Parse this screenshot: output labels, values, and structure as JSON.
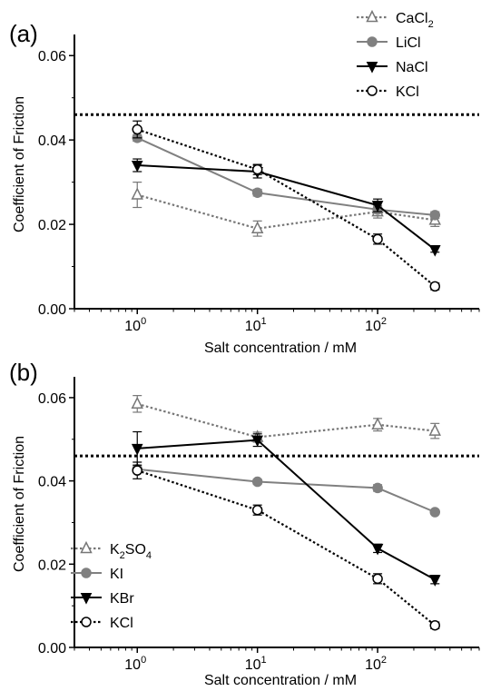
{
  "chart_data": [
    {
      "panel_label": "(a)",
      "type": "line",
      "x_scale": "log",
      "xlabel": "Salt concentration / mM",
      "ylabel": "Coefficient of Friction",
      "xlim": [
        0.3,
        700
      ],
      "ylim": [
        0,
        0.065
      ],
      "x_tick_labels": [
        {
          "base": "10",
          "exp": "0",
          "value": 1
        },
        {
          "base": "10",
          "exp": "1",
          "value": 10
        },
        {
          "base": "10",
          "exp": "2",
          "value": 100
        }
      ],
      "y_ticks": [
        0.0,
        0.02,
        0.04,
        0.06
      ],
      "y_tick_labels": [
        "0.00",
        "0.02",
        "0.04",
        "0.06"
      ],
      "reference_line": {
        "y": 0.046,
        "style": "dotted"
      },
      "legend": {
        "placement": "top-right"
      },
      "series": [
        {
          "name": "CaCl",
          "name_sub": "2",
          "marker": "triangle-open",
          "line": "dotted",
          "color": "#777777",
          "x": [
            1,
            10,
            100,
            300
          ],
          "y": [
            0.027,
            0.019,
            0.023,
            0.021
          ],
          "err": [
            0.003,
            0.0018,
            0.0015,
            0.0015
          ]
        },
        {
          "name": "LiCl",
          "marker": "circle-filled",
          "line": "solid",
          "color": "#808080",
          "x": [
            1,
            10,
            100,
            300
          ],
          "y": [
            0.0405,
            0.0275,
            0.0235,
            0.0222
          ],
          "err": [
            0.0008,
            0.0008,
            0.0008,
            0.0008
          ]
        },
        {
          "name": "NaCl",
          "marker": "triangle-down-filled",
          "line": "solid",
          "color": "#000000",
          "x": [
            1,
            10,
            100,
            300
          ],
          "y": [
            0.034,
            0.0325,
            0.0245,
            0.014
          ],
          "err": [
            0.0015,
            0.0015,
            0.0015,
            0.0006
          ]
        },
        {
          "name": "KCl",
          "marker": "circle-open",
          "line": "dotted",
          "color": "#000000",
          "x": [
            1,
            10,
            100,
            300
          ],
          "y": [
            0.0425,
            0.033,
            0.0165,
            0.0053
          ],
          "err": [
            0.002,
            0.0012,
            0.0012,
            0.0008
          ]
        }
      ]
    },
    {
      "panel_label": "(b)",
      "type": "line",
      "x_scale": "log",
      "xlabel": "Salt concentration / mM",
      "ylabel": "Coefficient of Friction",
      "xlim": [
        0.3,
        700
      ],
      "ylim": [
        0,
        0.065
      ],
      "x_tick_labels": [
        {
          "base": "10",
          "exp": "0",
          "value": 1
        },
        {
          "base": "10",
          "exp": "1",
          "value": 10
        },
        {
          "base": "10",
          "exp": "2",
          "value": 100
        }
      ],
      "y_ticks": [
        0.0,
        0.02,
        0.04,
        0.06
      ],
      "y_tick_labels": [
        "0.00",
        "0.02",
        "0.04",
        "0.06"
      ],
      "reference_line": {
        "y": 0.046,
        "style": "dotted"
      },
      "legend": {
        "placement": "bottom-left"
      },
      "series": [
        {
          "name": "K",
          "name_sub": "2",
          "name_suffix": "SO",
          "name_sub2": "4",
          "marker": "triangle-open",
          "line": "dotted",
          "color": "#777777",
          "x": [
            1,
            10,
            100,
            300
          ],
          "y": [
            0.0585,
            0.0505,
            0.0535,
            0.052
          ],
          "err": [
            0.002,
            0.0012,
            0.0015,
            0.0018
          ]
        },
        {
          "name": "KI",
          "marker": "circle-filled",
          "line": "solid",
          "color": "#808080",
          "x": [
            1,
            10,
            100,
            300
          ],
          "y": [
            0.0428,
            0.0398,
            0.0383,
            0.0325
          ],
          "err": [
            0.0008,
            0.0006,
            0.0008,
            0.0005
          ]
        },
        {
          "name": "KBr",
          "marker": "triangle-down-filled",
          "line": "solid",
          "color": "#000000",
          "x": [
            1,
            10,
            100,
            300
          ],
          "y": [
            0.0478,
            0.0498,
            0.0238,
            0.0163
          ],
          "err": [
            0.004,
            0.0015,
            0.001,
            0.001
          ]
        },
        {
          "name": "KCl",
          "marker": "circle-open",
          "line": "dotted",
          "color": "#000000",
          "x": [
            1,
            10,
            100,
            300
          ],
          "y": [
            0.0425,
            0.033,
            0.0165,
            0.0053
          ],
          "err": [
            0.002,
            0.0012,
            0.0012,
            0.0008
          ]
        }
      ]
    }
  ]
}
